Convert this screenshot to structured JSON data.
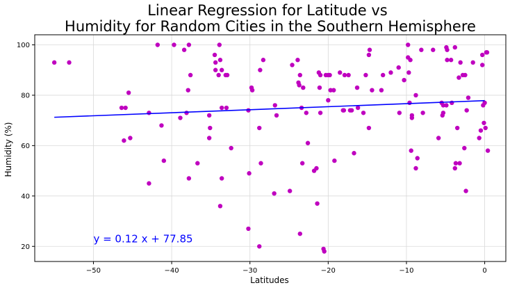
{
  "chart_data": {
    "type": "scatter",
    "title_lines": [
      "Linear Regression for Latitude vs",
      "Humidity for Random Cities in the Southern Hemisphere"
    ],
    "xlabel": "Latitudes",
    "ylabel": "Humidity (%)",
    "xlim": [
      -57.5,
      2.7
    ],
    "ylim": [
      14,
      104
    ],
    "xticks": [
      -50,
      -40,
      -30,
      -20,
      -10,
      0
    ],
    "yticks": [
      20,
      40,
      60,
      80,
      100
    ],
    "grid": true,
    "point_color": "#bf00bf",
    "line_color": "#0000ff",
    "annotation": {
      "text": "y = 0.12 x + 77.85",
      "x": -50,
      "y": 23,
      "color": "#0000ff"
    },
    "regression": {
      "slope": 0.12,
      "intercept": 77.85,
      "x_range": [
        -55,
        0
      ]
    },
    "points": [
      [
        -55.0,
        93
      ],
      [
        -53.1,
        93
      ],
      [
        -46.4,
        75
      ],
      [
        -45.9,
        75
      ],
      [
        -46.1,
        62
      ],
      [
        -45.5,
        81
      ],
      [
        -45.3,
        63
      ],
      [
        -42.9,
        73
      ],
      [
        -42.9,
        45
      ],
      [
        -41.8,
        100
      ],
      [
        -41.3,
        68
      ],
      [
        -41.0,
        54
      ],
      [
        -39.7,
        100
      ],
      [
        -38.9,
        71
      ],
      [
        -38.4,
        98
      ],
      [
        -38.1,
        73
      ],
      [
        -37.8,
        100
      ],
      [
        -37.9,
        82
      ],
      [
        -37.8,
        47
      ],
      [
        -37.6,
        88
      ],
      [
        -36.7,
        53
      ],
      [
        -35.2,
        72
      ],
      [
        -35.1,
        67
      ],
      [
        -35.2,
        63
      ],
      [
        -34.5,
        96
      ],
      [
        -34.4,
        93
      ],
      [
        -34.4,
        90
      ],
      [
        -34.0,
        88
      ],
      [
        -33.8,
        94
      ],
      [
        -33.9,
        100
      ],
      [
        -33.6,
        90
      ],
      [
        -33.6,
        75
      ],
      [
        -33.6,
        47
      ],
      [
        -33.8,
        36
      ],
      [
        -33.1,
        88
      ],
      [
        -32.9,
        88
      ],
      [
        -33.0,
        75
      ],
      [
        -32.4,
        59
      ],
      [
        -30.2,
        74
      ],
      [
        -30.1,
        49
      ],
      [
        -30.2,
        27
      ],
      [
        -29.8,
        83
      ],
      [
        -29.7,
        82
      ],
      [
        -28.8,
        67
      ],
      [
        -28.7,
        90
      ],
      [
        -28.6,
        53
      ],
      [
        -28.8,
        20
      ],
      [
        -28.3,
        94
      ],
      [
        -26.8,
        76
      ],
      [
        -26.6,
        72
      ],
      [
        -26.9,
        41
      ],
      [
        -24.9,
        42
      ],
      [
        -24.6,
        92
      ],
      [
        -23.9,
        94
      ],
      [
        -23.8,
        85
      ],
      [
        -23.6,
        88
      ],
      [
        -23.7,
        84
      ],
      [
        -23.2,
        83
      ],
      [
        -23.4,
        75
      ],
      [
        -23.3,
        53
      ],
      [
        -23.6,
        25
      ],
      [
        -22.8,
        73
      ],
      [
        -22.6,
        61
      ],
      [
        -21.8,
        50
      ],
      [
        -21.5,
        51
      ],
      [
        -21.4,
        37
      ],
      [
        -21.2,
        89
      ],
      [
        -21.0,
        88
      ],
      [
        -21.1,
        83
      ],
      [
        -21.0,
        73
      ],
      [
        -20.6,
        19
      ],
      [
        -20.5,
        18
      ],
      [
        -20.3,
        88
      ],
      [
        -20.0,
        88
      ],
      [
        -20.0,
        78
      ],
      [
        -19.8,
        88
      ],
      [
        -19.7,
        82
      ],
      [
        -19.3,
        82
      ],
      [
        -19.2,
        54
      ],
      [
        -18.5,
        89
      ],
      [
        -18.1,
        74
      ],
      [
        -18.0,
        74
      ],
      [
        -17.9,
        88
      ],
      [
        -17.4,
        88
      ],
      [
        -17.2,
        74
      ],
      [
        -17.0,
        74
      ],
      [
        -16.7,
        57
      ],
      [
        -16.3,
        83
      ],
      [
        -16.2,
        75
      ],
      [
        -15.5,
        73
      ],
      [
        -15.2,
        88
      ],
      [
        -14.4,
        82
      ],
      [
        -14.7,
        98
      ],
      [
        -14.8,
        96
      ],
      [
        -14.8,
        67
      ],
      [
        -13.0,
        88
      ],
      [
        -13.2,
        82
      ],
      [
        -12.0,
        89
      ],
      [
        -11.0,
        91
      ],
      [
        -10.9,
        73
      ],
      [
        -10.3,
        86
      ],
      [
        -9.8,
        100
      ],
      [
        -9.8,
        95
      ],
      [
        -9.7,
        89
      ],
      [
        -9.5,
        94
      ],
      [
        -9.6,
        77
      ],
      [
        -9.3,
        72
      ],
      [
        -9.3,
        71
      ],
      [
        -9.4,
        58
      ],
      [
        -8.8,
        80
      ],
      [
        -8.6,
        55
      ],
      [
        -8.8,
        51
      ],
      [
        -8.1,
        98
      ],
      [
        -7.9,
        73
      ],
      [
        -6.6,
        98
      ],
      [
        -5.9,
        63
      ],
      [
        -5.5,
        77
      ],
      [
        -5.3,
        76
      ],
      [
        -5.3,
        73
      ],
      [
        -5.4,
        72
      ],
      [
        -4.8,
        98
      ],
      [
        -4.9,
        99
      ],
      [
        -4.8,
        94
      ],
      [
        -4.9,
        76
      ],
      [
        -4.3,
        94
      ],
      [
        -4.2,
        77
      ],
      [
        -3.8,
        99
      ],
      [
        -3.8,
        51
      ],
      [
        -3.7,
        53
      ],
      [
        -3.5,
        67
      ],
      [
        -3.3,
        87
      ],
      [
        -3.2,
        53
      ],
      [
        -3.1,
        93
      ],
      [
        -2.8,
        88
      ],
      [
        -2.6,
        59
      ],
      [
        -2.5,
        88
      ],
      [
        -2.3,
        74
      ],
      [
        -2.4,
        42
      ],
      [
        -2.1,
        79
      ],
      [
        -1.5,
        93
      ],
      [
        -0.7,
        63
      ],
      [
        -0.5,
        66
      ],
      [
        -0.3,
        96
      ],
      [
        -0.3,
        92
      ],
      [
        -0.2,
        76
      ],
      [
        -0.1,
        69
      ],
      [
        0.2,
        97
      ],
      [
        0.3,
        97
      ],
      [
        0.0,
        77
      ],
      [
        0.1,
        67
      ],
      [
        0.4,
        58
      ]
    ]
  }
}
